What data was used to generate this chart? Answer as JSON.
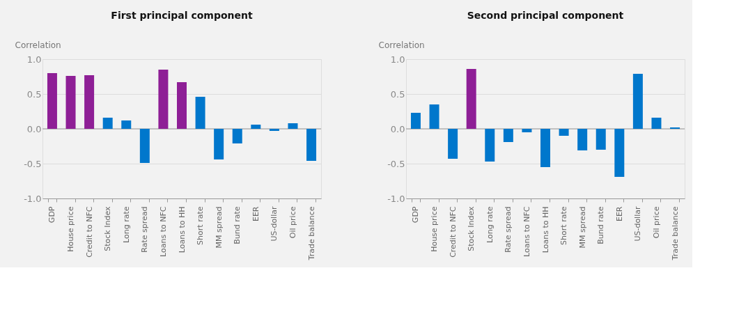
{
  "chart_data": [
    {
      "type": "bar",
      "title": "First principal component",
      "ylabel": "Correlation",
      "categories": [
        "GDP",
        "House price",
        "Credit to NFC",
        "Stock Index",
        "Long rate",
        "Rate spread",
        "Loans to NFC",
        "Loans to HH",
        "Short rate",
        "MM spread",
        "Bund rate",
        "EER",
        "US-dollar",
        "Oil price",
        "Trade balance"
      ],
      "values": [
        0.8,
        0.76,
        0.77,
        0.16,
        0.12,
        -0.49,
        0.85,
        0.67,
        0.46,
        -0.44,
        -0.21,
        0.06,
        -0.03,
        0.08,
        -0.46
      ],
      "colors": [
        "#8e1f96",
        "#8e1f96",
        "#8e1f96",
        "#0077cc",
        "#0077cc",
        "#0077cc",
        "#8e1f96",
        "#8e1f96",
        "#0077cc",
        "#0077cc",
        "#0077cc",
        "#0077cc",
        "#0077cc",
        "#0077cc",
        "#0077cc"
      ],
      "ylim": [
        -1.0,
        1.0
      ],
      "yticks": [
        {
          "value": -1.0,
          "label": "-1.0"
        },
        {
          "value": -0.5,
          "label": "-0.5"
        },
        {
          "value": 0.0,
          "label": "0.0"
        },
        {
          "value": 0.5,
          "label": "0.5"
        },
        {
          "value": 1.0,
          "label": "1.0"
        }
      ],
      "ref_lines": [
        {
          "axis": "y",
          "value": 0,
          "color": "#999999"
        }
      ],
      "grid": "y"
    },
    {
      "type": "bar",
      "title": "Second principal component",
      "ylabel": "Correlation",
      "categories": [
        "GDP",
        "House price",
        "Credit to NFC",
        "Stock Index",
        "Long rate",
        "Rate spread",
        "Loans to NFC",
        "Loans to HH",
        "Short rate",
        "MM spread",
        "Bund rate",
        "EER",
        "US-dollar",
        "Oil price",
        "Trade balance"
      ],
      "values": [
        0.23,
        0.35,
        -0.43,
        0.86,
        -0.47,
        -0.19,
        -0.05,
        -0.55,
        -0.1,
        -0.31,
        -0.3,
        -0.69,
        0.79,
        0.16,
        0.02
      ],
      "colors": [
        "#0077cc",
        "#0077cc",
        "#0077cc",
        "#8e1f96",
        "#0077cc",
        "#0077cc",
        "#0077cc",
        "#0077cc",
        "#0077cc",
        "#0077cc",
        "#0077cc",
        "#0077cc",
        "#0077cc",
        "#0077cc",
        "#0077cc"
      ],
      "ylim": [
        -1.0,
        1.0
      ],
      "yticks": [
        {
          "value": -1.0,
          "label": "-1.0"
        },
        {
          "value": -0.5,
          "label": "-0.5"
        },
        {
          "value": 0.0,
          "label": "0.0"
        },
        {
          "value": 0.5,
          "label": "0.5"
        },
        {
          "value": 1.0,
          "label": "1.0"
        }
      ],
      "ref_lines": [
        {
          "axis": "y",
          "value": 0,
          "color": "#999999"
        }
      ],
      "grid": "y"
    }
  ]
}
